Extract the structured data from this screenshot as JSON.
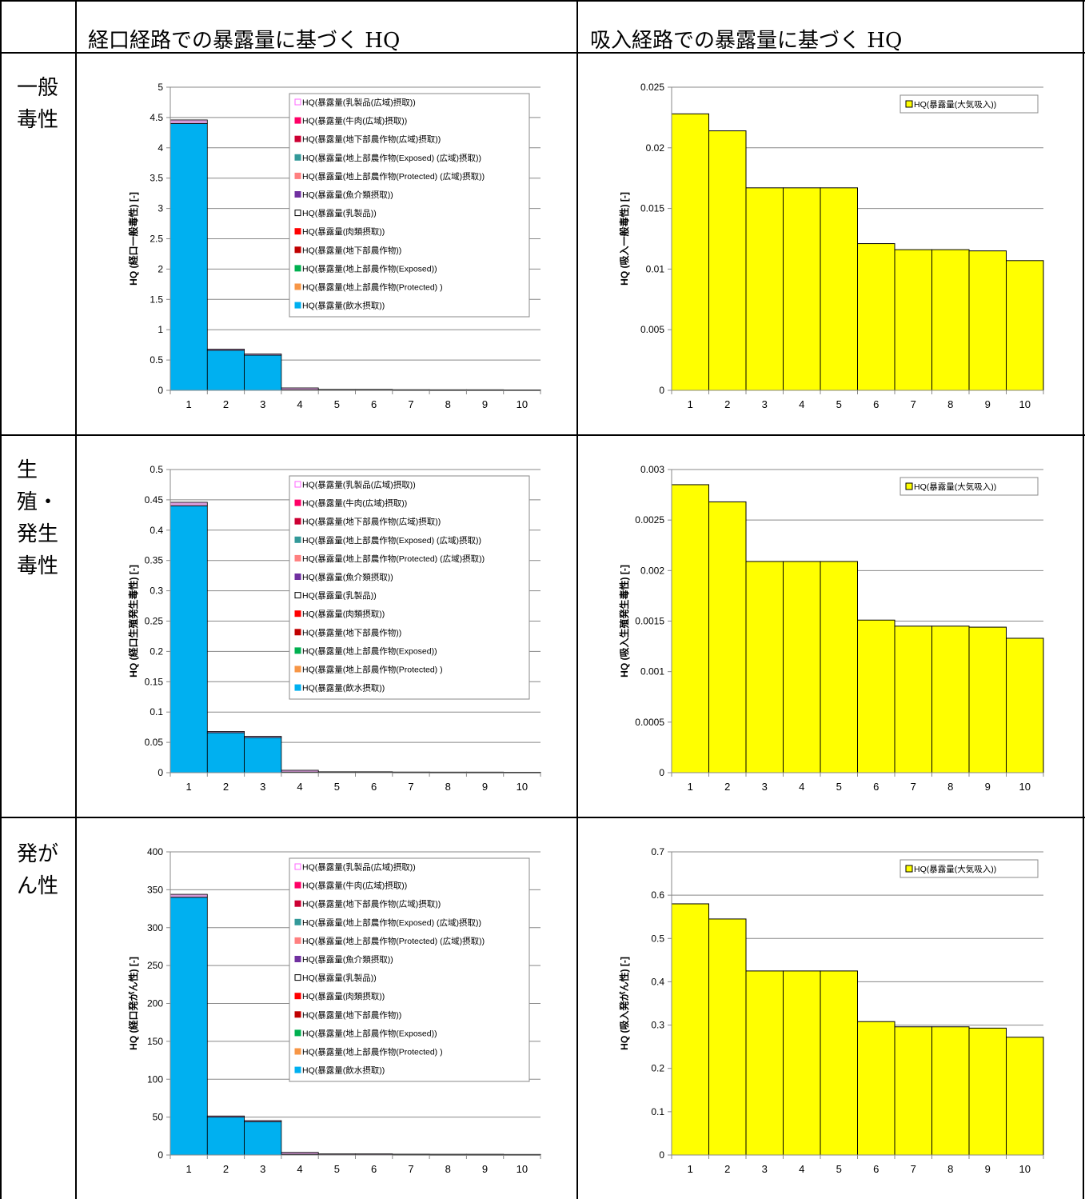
{
  "headers": {
    "oral": "経口経路での暴露量に基づく HQ",
    "inhal": "吸入経路での暴露量に基づく HQ"
  },
  "rows": [
    {
      "label": "一般\n毒性"
    },
    {
      "label": "生\n殖・\n発生\n毒性"
    },
    {
      "label": "発が\nん性"
    }
  ],
  "colors": {
    "water": "#00B0F0",
    "top_layer": "#D59AD7",
    "inhal_bar": "#FFFF00",
    "grid": "#888888"
  },
  "legend_oral": [
    {
      "label": "HQ(暴露量(乳製品(広域)摂取))",
      "color": "#FFFFFF",
      "edge": "#FF66FF"
    },
    {
      "label": "HQ(暴露量(牛肉(広域)摂取))",
      "color": "#FF0066",
      "edge": "#FF0066"
    },
    {
      "label": "HQ(暴露量(地下部農作物(広域)摂取))",
      "color": "#CC0033",
      "edge": "#CC0033"
    },
    {
      "label": "HQ(暴露量(地上部農作物(Exposed) (広域)摂取))",
      "color": "#339999",
      "edge": "#339999"
    },
    {
      "label": "HQ(暴露量(地上部農作物(Protected) (広域)摂取))",
      "color": "#FF8080",
      "edge": "#FF8080"
    },
    {
      "label": "HQ(暴露量(魚介類摂取))",
      "color": "#7030A0",
      "edge": "#7030A0"
    },
    {
      "label": "HQ(暴露量(乳製品))",
      "color": "#FFFFFF",
      "edge": "#000000"
    },
    {
      "label": "HQ(暴露量(肉類摂取))",
      "color": "#FF0000",
      "edge": "#FF0000"
    },
    {
      "label": "HQ(暴露量(地下部農作物))",
      "color": "#C00000",
      "edge": "#C00000"
    },
    {
      "label": "HQ(暴露量(地上部農作物(Exposed))",
      "color": "#00B050",
      "edge": "#00B050"
    },
    {
      "label": "HQ(暴露量(地上部農作物(Protected) )",
      "color": "#F79646",
      "edge": "#F79646"
    },
    {
      "label": "HQ(暴露量(飲水摂取))",
      "color": "#00B0F0",
      "edge": "#00B0F0"
    }
  ],
  "legend_inhal": "HQ(暴露量(大気吸入))",
  "chart_data": [
    {
      "id": "oral-general",
      "type": "bar",
      "stacked": true,
      "ylabel": "HQ (経口一般毒性) [-]",
      "ylim": [
        0,
        5
      ],
      "ytick_step": 0.5,
      "yticks": [
        "0",
        "0.5",
        "1",
        "1.5",
        "2",
        "2.5",
        "3",
        "3.5",
        "4",
        "4.5",
        "5"
      ],
      "categories": [
        "1",
        "2",
        "3",
        "4",
        "5",
        "6",
        "7",
        "8",
        "9",
        "10"
      ],
      "series": [
        {
          "name": "HQ(暴露量(飲水摂取))",
          "values": [
            4.4,
            0.66,
            0.58,
            0.01,
            0.005,
            0.005,
            0.003,
            0.002,
            0.002,
            0.002
          ]
        },
        {
          "name": "HQ(暴露量(乳製品(広域)摂取))",
          "values": [
            0.06,
            0.02,
            0.02,
            0.03,
            0.01,
            0.01,
            0.008,
            0.008,
            0.008,
            0.006
          ]
        }
      ]
    },
    {
      "id": "inhal-general",
      "type": "bar",
      "ylabel": "HQ (吸入一般毒性) [-]",
      "ylim": [
        0,
        0.025
      ],
      "ytick_step": 0.005,
      "yticks": [
        "0",
        "0.005",
        "0.01",
        "0.015",
        "0.02",
        "0.025"
      ],
      "categories": [
        "1",
        "2",
        "3",
        "4",
        "5",
        "6",
        "7",
        "8",
        "9",
        "10"
      ],
      "series": [
        {
          "name": "HQ(暴露量(大気吸入))",
          "values": [
            0.0228,
            0.0214,
            0.0167,
            0.0167,
            0.0167,
            0.0121,
            0.0116,
            0.0116,
            0.0115,
            0.0107
          ]
        }
      ]
    },
    {
      "id": "oral-repro",
      "type": "bar",
      "stacked": true,
      "ylabel": "HQ (経口生殖発生毒性) [-]",
      "ylim": [
        0,
        0.5
      ],
      "ytick_step": 0.05,
      "yticks": [
        "0",
        "0.05",
        "0.1",
        "0.15",
        "0.2",
        "0.25",
        "0.3",
        "0.35",
        "0.4",
        "0.45",
        "0.5"
      ],
      "categories": [
        "1",
        "2",
        "3",
        "4",
        "5",
        "6",
        "7",
        "8",
        "9",
        "10"
      ],
      "series": [
        {
          "name": "HQ(暴露量(飲水摂取))",
          "values": [
            0.44,
            0.066,
            0.058,
            0.001,
            0.0005,
            0.0005,
            0.0003,
            0.0002,
            0.0002,
            0.0002
          ]
        },
        {
          "name": "HQ(暴露量(乳製品(広域)摂取))",
          "values": [
            0.006,
            0.002,
            0.002,
            0.003,
            0.001,
            0.001,
            0.0008,
            0.0008,
            0.0008,
            0.0006
          ]
        }
      ]
    },
    {
      "id": "inhal-repro",
      "type": "bar",
      "ylabel": "HQ (吸入生殖発生毒性) [-]",
      "ylim": [
        0,
        0.003
      ],
      "ytick_step": 0.0005,
      "yticks": [
        "0",
        "0.0005",
        "0.001",
        "0.0015",
        "0.002",
        "0.0025",
        "0.003"
      ],
      "categories": [
        "1",
        "2",
        "3",
        "4",
        "5",
        "6",
        "7",
        "8",
        "9",
        "10"
      ],
      "series": [
        {
          "name": "HQ(暴露量(大気吸入))",
          "values": [
            0.00285,
            0.00268,
            0.00209,
            0.00209,
            0.00209,
            0.00151,
            0.00145,
            0.00145,
            0.00144,
            0.00133
          ]
        }
      ]
    },
    {
      "id": "oral-carc",
      "type": "bar",
      "stacked": true,
      "ylabel": "HQ (経口発がん性) [-]",
      "ylim": [
        0,
        400
      ],
      "ytick_step": 50,
      "yticks": [
        "0",
        "50",
        "100",
        "150",
        "200",
        "250",
        "300",
        "350",
        "400"
      ],
      "categories": [
        "1",
        "2",
        "3",
        "4",
        "5",
        "6",
        "7",
        "8",
        "9",
        "10"
      ],
      "series": [
        {
          "name": "HQ(暴露量(飲水摂取))",
          "values": [
            340,
            50,
            44,
            1,
            0.5,
            0.5,
            0.3,
            0.2,
            0.2,
            0.2
          ]
        },
        {
          "name": "HQ(暴露量(乳製品(広域)摂取))",
          "values": [
            4,
            1.5,
            1.5,
            2.5,
            1,
            1,
            0.8,
            0.8,
            0.8,
            0.6
          ]
        }
      ]
    },
    {
      "id": "inhal-carc",
      "type": "bar",
      "ylabel": "HQ (吸入発がん性) [-]",
      "ylim": [
        0,
        0.7
      ],
      "ytick_step": 0.1,
      "yticks": [
        "0",
        "0.1",
        "0.2",
        "0.3",
        "0.4",
        "0.5",
        "0.6",
        "0.7"
      ],
      "categories": [
        "1",
        "2",
        "3",
        "4",
        "5",
        "6",
        "7",
        "8",
        "9",
        "10"
      ],
      "series": [
        {
          "name": "HQ(暴露量(大気吸入))",
          "values": [
            0.58,
            0.545,
            0.425,
            0.425,
            0.425,
            0.308,
            0.296,
            0.296,
            0.293,
            0.272
          ]
        }
      ]
    }
  ]
}
